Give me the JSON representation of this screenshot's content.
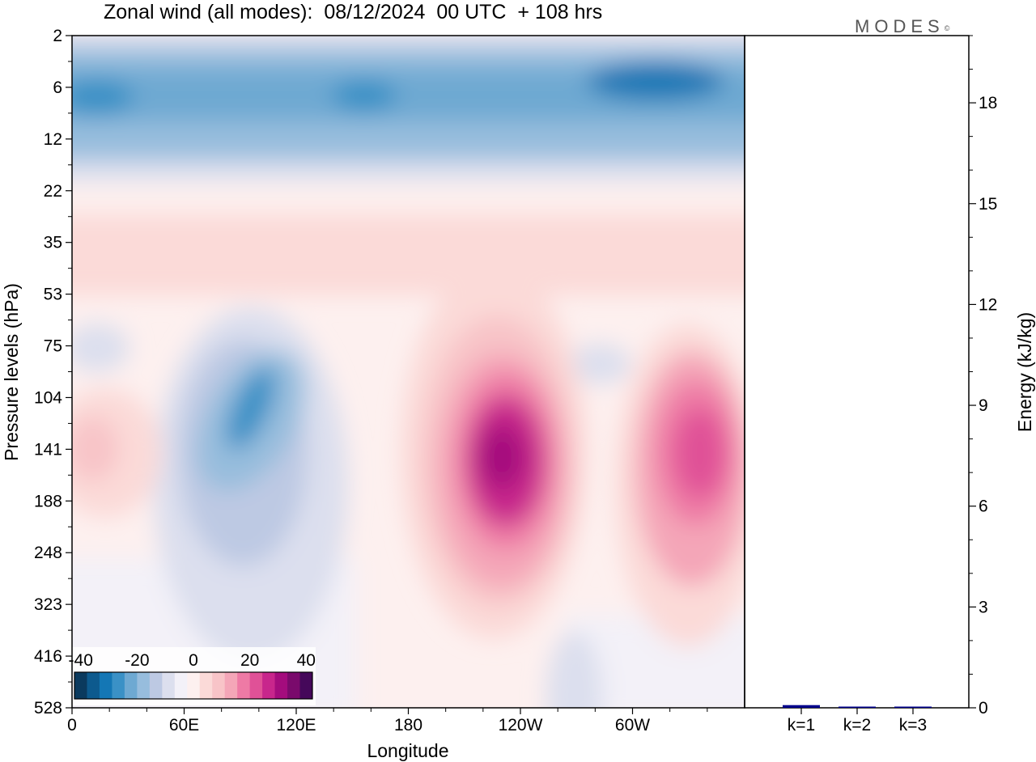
{
  "title": "Zonal wind (all modes):  08/12/2024  00 UTC  + 108 hrs",
  "logo": {
    "text": "MODES",
    "mark": "©"
  },
  "chart_data": [
    {
      "type": "heatmap",
      "variable": "Zonal wind",
      "xlabel": "Longitude",
      "ylabel": "Pressure levels (hPa)",
      "x_ticks": [
        "0",
        "60E",
        "120E",
        "180",
        "120W",
        "60W"
      ],
      "x_tick_degrees": [
        0,
        60,
        120,
        180,
        240,
        300
      ],
      "x_range_degrees": [
        0,
        360
      ],
      "y_ticks": [
        "2",
        "6",
        "12",
        "22",
        "35",
        "53",
        "75",
        "104",
        "141",
        "188",
        "248",
        "323",
        "416",
        "528"
      ],
      "colorbar": {
        "tick_labels": [
          "-40",
          "-20",
          "0",
          "20",
          "40"
        ],
        "range": [
          -40,
          40
        ],
        "step": 5,
        "colors": [
          "#0b3a5e",
          "#0d5a8e",
          "#1477b5",
          "#3a91c6",
          "#6ea9d2",
          "#97bddd",
          "#bdc9e3",
          "#dcdfee",
          "#f3f1f8",
          "#fdf0ef",
          "#fbdad8",
          "#f8c4c8",
          "#f4a6b8",
          "#ee7aa5",
          "#e05197",
          "#c8268c",
          "#a40c7d",
          "#7a0a6c",
          "#45085a"
        ]
      },
      "features": [
        {
          "desc": "easterly band",
          "lon": [
            0,
            360
          ],
          "p": [
            2,
            14
          ],
          "u": -20
        },
        {
          "desc": "easterly core",
          "lon": [
            300,
            345
          ],
          "p": [
            4,
            9
          ],
          "u": -30
        },
        {
          "desc": "weak westerly",
          "lon": [
            0,
            360
          ],
          "p": [
            22,
            60
          ],
          "u": 5
        },
        {
          "desc": "easterly jet",
          "lon": [
            85,
            95
          ],
          "p": [
            100,
            170
          ],
          "u": -25
        },
        {
          "desc": "westerly jet",
          "lon": [
            225,
            240
          ],
          "p": [
            120,
            170
          ],
          "u": 35
        },
        {
          "desc": "westerly jet",
          "lon": [
            340,
            350
          ],
          "p": [
            120,
            170
          ],
          "u": 30
        }
      ]
    },
    {
      "type": "bar",
      "ylabel": "Energy (kJ/kg)",
      "categories": [
        "k=1",
        "k=2",
        "k=3"
      ],
      "values": [
        0.08,
        0.02,
        0.02
      ],
      "ylim": [
        0,
        20
      ],
      "y_ticks": [
        "0",
        "3",
        "6",
        "9",
        "12",
        "15",
        "18"
      ],
      "bar_color": "#00008b"
    }
  ]
}
